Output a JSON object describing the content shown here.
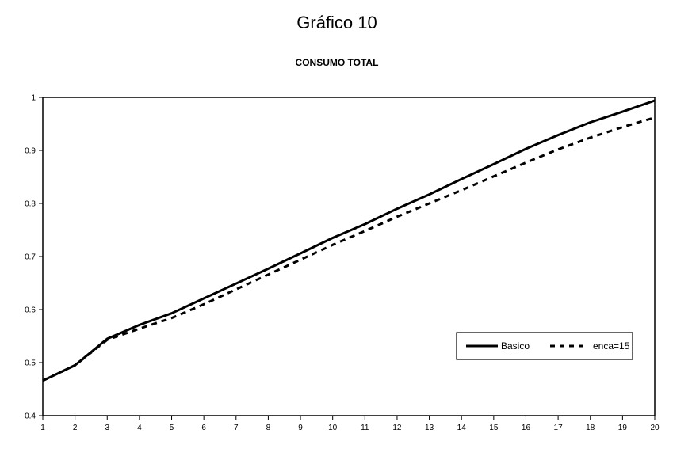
{
  "chart_data": {
    "type": "line",
    "title": "Gráfico 10",
    "subtitle": "CONSUMO TOTAL",
    "xlabel": "",
    "ylabel": "",
    "x": [
      1,
      2,
      3,
      4,
      5,
      6,
      7,
      8,
      9,
      10,
      11,
      12,
      13,
      14,
      15,
      16,
      17,
      18,
      19,
      20
    ],
    "x_tick_labels": [
      "1",
      "2",
      "3",
      "4",
      "5",
      "6",
      "7",
      "8",
      "9",
      "10",
      "11",
      "12",
      "13",
      "14",
      "15",
      "16",
      "17",
      "18",
      "19",
      "20"
    ],
    "ylim": [
      0.4,
      1.0
    ],
    "y_ticks": [
      0.4,
      0.5,
      0.6,
      0.7,
      0.8,
      0.9,
      1.0
    ],
    "y_tick_labels": [
      "0.4",
      "0.5",
      "0.6",
      "0.7",
      "0.8",
      "0.9",
      "1"
    ],
    "grid": false,
    "legend_position": "bottom-right",
    "series": [
      {
        "name": "Basico",
        "style": "solid",
        "color": "#000000",
        "values": [
          0.466,
          0.495,
          0.545,
          0.571,
          0.593,
          0.621,
          0.649,
          0.677,
          0.706,
          0.735,
          0.761,
          0.79,
          0.817,
          0.846,
          0.874,
          0.903,
          0.929,
          0.953,
          0.973,
          0.994
        ]
      },
      {
        "name": "enca=15",
        "style": "dashed",
        "color": "#000000",
        "values": [
          0.466,
          0.495,
          0.543,
          0.564,
          0.584,
          0.61,
          0.638,
          0.666,
          0.694,
          0.722,
          0.748,
          0.775,
          0.8,
          0.825,
          0.851,
          0.877,
          0.902,
          0.924,
          0.944,
          0.962
        ]
      }
    ]
  }
}
